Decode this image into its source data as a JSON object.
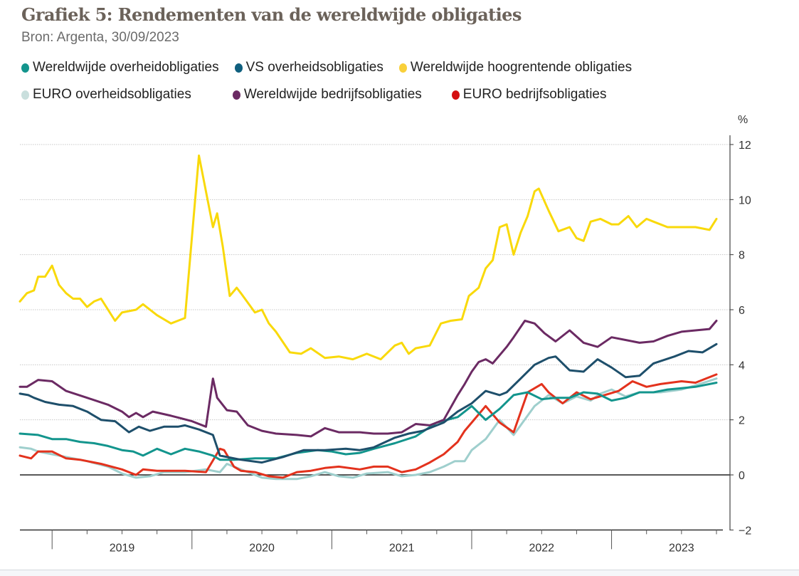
{
  "title": "Grafiek 5:  Rendementen van de wereldwijde obligaties",
  "source": "Bron: Argenta, 30/09/2023",
  "chart_data": {
    "type": "line",
    "title": "Grafiek 5: Rendementen van de wereldwijde obligaties",
    "subtitle": "Bron: Argenta, 30/09/2023",
    "xlabel": "",
    "ylabel": "%",
    "x_tick_labels": [
      "2019",
      "2020",
      "2021",
      "2022",
      "2023"
    ],
    "y_ticks": [
      12,
      10,
      8,
      6,
      4,
      2,
      0,
      -2
    ],
    "ylim": [
      -2,
      12
    ],
    "xlim": [
      2018.77,
      2023.8
    ],
    "grid": true,
    "legend_position": "top",
    "series": [
      {
        "name": "Wereldwijde overheidobligaties",
        "color": "#13958d",
        "x": [
          2018.77,
          2018.9,
          2019.0,
          2019.1,
          2019.2,
          2019.3,
          2019.4,
          2019.5,
          2019.58,
          2019.65,
          2019.75,
          2019.85,
          2019.95,
          2020.05,
          2020.15,
          2020.2,
          2020.3,
          2020.45,
          2020.6,
          2020.75,
          2020.9,
          2021.0,
          2021.1,
          2021.2,
          2021.3,
          2021.45,
          2021.6,
          2021.75,
          2021.9,
          2022.0,
          2022.1,
          2022.2,
          2022.3,
          2022.4,
          2022.5,
          2022.6,
          2022.7,
          2022.8,
          2022.9,
          2023.0,
          2023.1,
          2023.2,
          2023.3,
          2023.4,
          2023.5,
          2023.6,
          2023.75
        ],
        "values": [
          1.5,
          1.45,
          1.3,
          1.3,
          1.2,
          1.15,
          1.05,
          0.9,
          0.85,
          0.7,
          0.95,
          0.75,
          0.95,
          0.85,
          0.7,
          0.55,
          0.55,
          0.6,
          0.6,
          0.8,
          0.9,
          0.85,
          0.75,
          0.8,
          0.95,
          1.15,
          1.4,
          1.9,
          2.1,
          2.5,
          2.0,
          2.4,
          2.9,
          3.0,
          2.75,
          2.8,
          2.8,
          3.0,
          2.95,
          2.7,
          2.8,
          3.0,
          3.0,
          3.1,
          3.15,
          3.2,
          3.35
        ]
      },
      {
        "name": "VS overheidsobligaties",
        "color": "#1e4f6b",
        "x": [
          2018.77,
          2018.83,
          2018.87,
          2018.95,
          2019.05,
          2019.15,
          2019.25,
          2019.35,
          2019.45,
          2019.55,
          2019.62,
          2019.7,
          2019.8,
          2019.9,
          2019.95,
          2020.05,
          2020.15,
          2020.2,
          2020.35,
          2020.5,
          2020.65,
          2020.8,
          2020.95,
          2021.1,
          2021.2,
          2021.3,
          2021.45,
          2021.55,
          2021.65,
          2021.8,
          2021.9,
          2022.0,
          2022.1,
          2022.2,
          2022.25,
          2022.35,
          2022.45,
          2022.55,
          2022.6,
          2022.7,
          2022.8,
          2022.9,
          2023.0,
          2023.1,
          2023.2,
          2023.3,
          2023.45,
          2023.55,
          2023.65,
          2023.75
        ],
        "values": [
          2.95,
          2.9,
          2.8,
          2.65,
          2.55,
          2.5,
          2.3,
          2.0,
          1.95,
          1.55,
          1.75,
          1.6,
          1.75,
          1.75,
          1.8,
          1.65,
          1.45,
          0.7,
          0.55,
          0.45,
          0.65,
          0.9,
          0.9,
          0.95,
          0.9,
          1.0,
          1.35,
          1.5,
          1.6,
          1.9,
          2.3,
          2.6,
          3.05,
          2.9,
          3.0,
          3.5,
          4.0,
          4.25,
          4.3,
          3.8,
          3.75,
          4.2,
          3.9,
          3.55,
          3.6,
          4.05,
          4.3,
          4.5,
          4.45,
          4.75
        ]
      },
      {
        "name": "Wereldwijde hoogrentende obligaties",
        "color": "#f9d90a",
        "x": [
          2018.77,
          2018.82,
          2018.87,
          2018.9,
          2018.95,
          2019.0,
          2019.05,
          2019.1,
          2019.15,
          2019.2,
          2019.25,
          2019.3,
          2019.35,
          2019.45,
          2019.5,
          2019.6,
          2019.65,
          2019.75,
          2019.85,
          2019.95,
          2020.05,
          2020.15,
          2020.18,
          2020.22,
          2020.27,
          2020.32,
          2020.35,
          2020.45,
          2020.5,
          2020.55,
          2020.6,
          2020.7,
          2020.78,
          2020.85,
          2020.95,
          2021.05,
          2021.15,
          2021.25,
          2021.35,
          2021.45,
          2021.5,
          2021.55,
          2021.6,
          2021.7,
          2021.78,
          2021.85,
          2021.93,
          2021.98,
          2022.05,
          2022.1,
          2022.15,
          2022.2,
          2022.25,
          2022.3,
          2022.35,
          2022.4,
          2022.45,
          2022.48,
          2022.55,
          2022.62,
          2022.7,
          2022.75,
          2022.8,
          2022.85,
          2022.92,
          2023.0,
          2023.05,
          2023.12,
          2023.18,
          2023.25,
          2023.3,
          2023.4,
          2023.5,
          2023.6,
          2023.7,
          2023.75
        ],
        "values": [
          6.3,
          6.6,
          6.7,
          7.2,
          7.2,
          7.6,
          6.9,
          6.6,
          6.4,
          6.4,
          6.1,
          6.3,
          6.4,
          5.6,
          5.9,
          6.0,
          6.2,
          5.8,
          5.5,
          5.7,
          11.6,
          9.0,
          9.5,
          8.3,
          6.5,
          6.8,
          6.6,
          5.9,
          6.0,
          5.5,
          5.2,
          4.45,
          4.4,
          4.6,
          4.25,
          4.3,
          4.2,
          4.4,
          4.2,
          4.7,
          4.8,
          4.4,
          4.6,
          4.7,
          5.5,
          5.6,
          5.65,
          6.5,
          6.8,
          7.5,
          7.8,
          9.0,
          9.1,
          8.0,
          8.8,
          9.4,
          10.3,
          10.4,
          9.6,
          8.85,
          9.0,
          8.6,
          8.5,
          9.2,
          9.3,
          9.1,
          9.1,
          9.4,
          9.0,
          9.3,
          9.2,
          9.0,
          9.0,
          9.0,
          8.9,
          9.3
        ]
      },
      {
        "name": "EURO overheidsobligaties",
        "color": "#9fcfcd",
        "x": [
          2018.77,
          2018.85,
          2018.9,
          2019.0,
          2019.1,
          2019.25,
          2019.4,
          2019.5,
          2019.6,
          2019.7,
          2019.8,
          2019.95,
          2020.1,
          2020.2,
          2020.25,
          2020.3,
          2020.4,
          2020.5,
          2020.6,
          2020.75,
          2020.85,
          2020.95,
          2021.05,
          2021.15,
          2021.25,
          2021.4,
          2021.5,
          2021.6,
          2021.7,
          2021.8,
          2021.88,
          2021.95,
          2022.0,
          2022.1,
          2022.2,
          2022.3,
          2022.45,
          2022.55,
          2022.65,
          2022.75,
          2022.85,
          2022.92,
          2023.0,
          2023.1,
          2023.2,
          2023.35,
          2023.5,
          2023.6,
          2023.75
        ],
        "values": [
          1.0,
          0.95,
          0.85,
          0.75,
          0.65,
          0.5,
          0.3,
          0.05,
          -0.1,
          -0.05,
          0.1,
          0.1,
          0.2,
          0.1,
          0.4,
          0.3,
          0.1,
          -0.1,
          -0.15,
          -0.15,
          -0.05,
          0.1,
          -0.05,
          -0.1,
          0.05,
          0.1,
          -0.05,
          0.0,
          0.1,
          0.3,
          0.5,
          0.5,
          0.9,
          1.3,
          2.0,
          1.45,
          2.5,
          2.9,
          2.6,
          2.85,
          2.7,
          2.95,
          3.1,
          2.85,
          3.0,
          3.0,
          3.1,
          3.25,
          3.5
        ]
      },
      {
        "name": "Wereldwijde bedrijfsobligaties",
        "color": "#6b2a63",
        "x": [
          2018.77,
          2018.82,
          2018.9,
          2019.0,
          2019.1,
          2019.25,
          2019.4,
          2019.5,
          2019.55,
          2019.6,
          2019.65,
          2019.72,
          2019.85,
          2020.0,
          2020.1,
          2020.15,
          2020.18,
          2020.25,
          2020.32,
          2020.4,
          2020.5,
          2020.6,
          2020.75,
          2020.85,
          2020.95,
          2021.05,
          2021.2,
          2021.3,
          2021.4,
          2021.5,
          2021.6,
          2021.7,
          2021.8,
          2021.85,
          2021.9,
          2021.95,
          2022.0,
          2022.05,
          2022.1,
          2022.15,
          2022.25,
          2022.3,
          2022.38,
          2022.45,
          2022.52,
          2022.6,
          2022.7,
          2022.8,
          2022.9,
          2023.0,
          2023.1,
          2023.2,
          2023.3,
          2023.4,
          2023.5,
          2023.6,
          2023.7,
          2023.75
        ],
        "values": [
          3.2,
          3.2,
          3.45,
          3.4,
          3.05,
          2.8,
          2.55,
          2.3,
          2.1,
          2.25,
          2.1,
          2.3,
          2.15,
          1.95,
          1.75,
          3.5,
          2.8,
          2.35,
          2.3,
          1.8,
          1.6,
          1.5,
          1.45,
          1.4,
          1.7,
          1.55,
          1.55,
          1.5,
          1.5,
          1.55,
          1.85,
          1.8,
          2.0,
          2.45,
          2.9,
          3.3,
          3.75,
          4.1,
          4.2,
          4.05,
          4.65,
          5.0,
          5.6,
          5.5,
          5.15,
          4.85,
          5.25,
          4.8,
          4.65,
          5.0,
          4.9,
          4.8,
          4.85,
          5.05,
          5.2,
          5.25,
          5.3,
          5.6
        ]
      },
      {
        "name": "EURO bedrijfsobligaties",
        "color": "#e3321d",
        "x": [
          2018.77,
          2018.85,
          2018.9,
          2019.0,
          2019.1,
          2019.2,
          2019.35,
          2019.5,
          2019.6,
          2019.65,
          2019.75,
          2019.85,
          2019.95,
          2020.1,
          2020.2,
          2020.23,
          2020.3,
          2020.35,
          2020.45,
          2020.55,
          2020.65,
          2020.75,
          2020.85,
          2020.95,
          2021.05,
          2021.2,
          2021.3,
          2021.4,
          2021.5,
          2021.6,
          2021.7,
          2021.8,
          2021.9,
          2021.95,
          2022.0,
          2022.1,
          2022.2,
          2022.3,
          2022.4,
          2022.5,
          2022.55,
          2022.65,
          2022.75,
          2022.85,
          2022.95,
          2023.05,
          2023.15,
          2023.25,
          2023.35,
          2023.5,
          2023.6,
          2023.75
        ],
        "values": [
          0.7,
          0.6,
          0.85,
          0.85,
          0.6,
          0.55,
          0.4,
          0.2,
          0.0,
          0.2,
          0.15,
          0.15,
          0.15,
          0.1,
          0.95,
          0.9,
          0.3,
          0.15,
          0.1,
          -0.05,
          -0.1,
          0.1,
          0.15,
          0.25,
          0.3,
          0.2,
          0.3,
          0.3,
          0.1,
          0.2,
          0.45,
          0.75,
          1.2,
          1.6,
          1.9,
          2.5,
          1.9,
          1.55,
          3.0,
          3.3,
          3.0,
          2.6,
          3.0,
          2.75,
          2.9,
          3.05,
          3.4,
          3.2,
          3.3,
          3.4,
          3.35,
          3.65
        ]
      }
    ]
  },
  "legend": {
    "row1": [
      {
        "label": "Wereldwijde overheidobligaties",
        "color": "#13958d"
      },
      {
        "label": "VS overheidsobligaties",
        "color": "#0f5f7e"
      },
      {
        "label": "Wereldwijde hoogrentende obligaties",
        "color": "#f9d03a"
      }
    ],
    "row2": [
      {
        "label": "EURO overheidsobligaties",
        "color": "#c9dfdd"
      },
      {
        "label": "Wereldwijde bedrijfsobligaties",
        "color": "#6b2a63"
      },
      {
        "label": "EURO bedrijfsobligaties",
        "color": "#d40f10"
      }
    ]
  },
  "axis": {
    "unit_label": "%"
  }
}
